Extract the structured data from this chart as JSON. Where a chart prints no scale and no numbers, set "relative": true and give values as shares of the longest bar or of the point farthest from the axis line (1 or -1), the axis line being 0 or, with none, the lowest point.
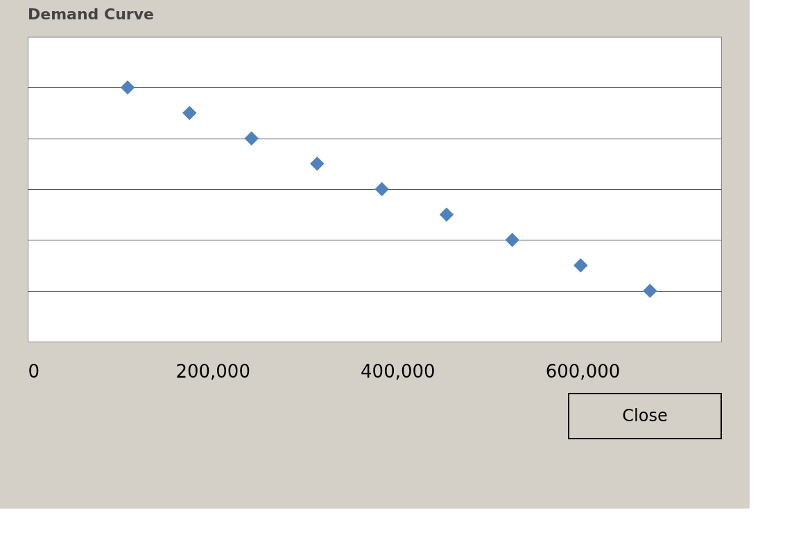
{
  "chart_data": {
    "type": "scatter",
    "title": "Demand Curve",
    "relative": true,
    "x": [
      108000,
      175000,
      242000,
      313000,
      383000,
      453000,
      524000,
      598000,
      673000
    ],
    "series": [
      {
        "color": "#4f81bd",
        "values": [
          1,
          0.9,
          0.8,
          0.7,
          0.6,
          0.5,
          0.4,
          0.3,
          0.2
        ]
      }
    ],
    "xlim": [
      0,
      750000
    ],
    "xticks": [
      0,
      {
        "value": 200000,
        "label": "200,000"
      },
      {
        "value": 400000,
        "label": "400,000"
      },
      {
        "value": 600000,
        "label": "600,000"
      }
    ],
    "grid": "y",
    "marker": "diamond",
    "annotations": [
      "Close"
    ]
  }
}
